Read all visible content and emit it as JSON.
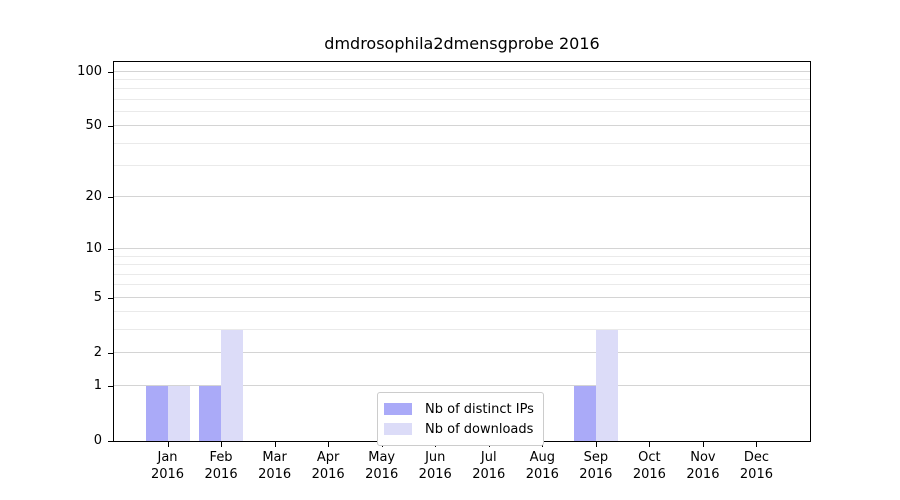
{
  "chart_data": {
    "type": "bar",
    "title": "dmdrosophila2dmensgprobe 2016",
    "categories": [
      "Jan 2016",
      "Feb 2016",
      "Mar 2016",
      "Apr 2016",
      "May 2016",
      "Jun 2016",
      "Jul 2016",
      "Aug 2016",
      "Sep 2016",
      "Oct 2016",
      "Nov 2016",
      "Dec 2016"
    ],
    "series": [
      {
        "name": "Nb of distinct IPs",
        "color": "#aaaaf8",
        "values": [
          1,
          1,
          0,
          0,
          0,
          0,
          0,
          0,
          1,
          0,
          0,
          0
        ]
      },
      {
        "name": "Nb of downloads",
        "color": "#dcdcf8",
        "values": [
          1,
          3,
          0,
          0,
          0,
          0,
          0,
          0,
          3,
          0,
          0,
          0
        ]
      }
    ],
    "y_scale": "log10(1+v)",
    "ylim": [
      0,
      113
    ],
    "y_ticks": [
      0,
      1,
      2,
      5,
      10,
      20,
      50,
      100
    ],
    "gridlines": [
      1,
      2,
      3,
      4,
      5,
      6,
      7,
      8,
      9,
      10,
      20,
      30,
      40,
      50,
      60,
      70,
      80,
      90,
      100
    ],
    "grid_on": true,
    "grid_major_color": "#d4d4d4",
    "grid_minor_color": "#eaeaea",
    "legend_position": "inside-bottom-center",
    "xlabel": "",
    "ylabel": ""
  }
}
